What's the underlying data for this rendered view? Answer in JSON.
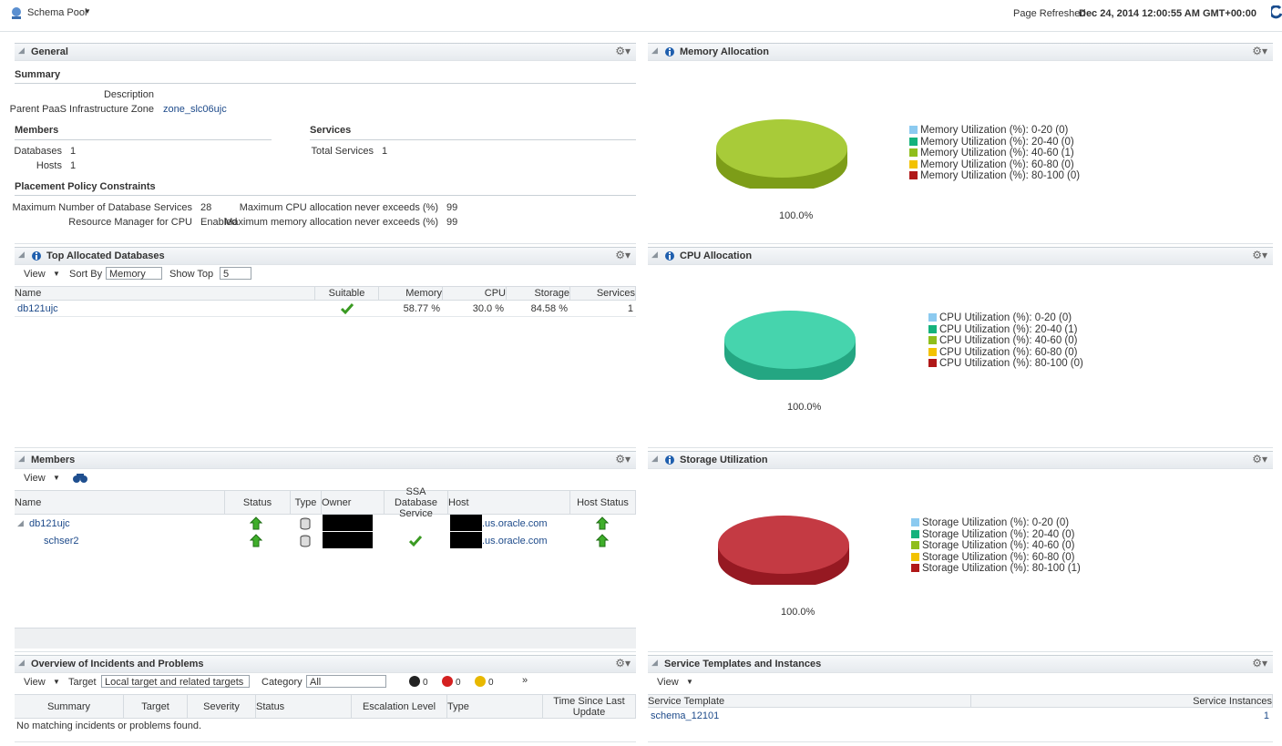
{
  "header": {
    "title": "Schema Pool",
    "refreshed_label": "Page Refreshed",
    "refreshed_value": "Dec 24, 2014 12:00:55 AM GMT+00:00"
  },
  "general": {
    "title": "General",
    "summary": "Summary",
    "description_label": "Description",
    "zone_label": "Parent PaaS Infrastructure Zone",
    "zone_value": "zone_slc06ujc",
    "members_title": "Members",
    "databases_label": "Databases",
    "databases_value": 1,
    "hosts_label": "Hosts",
    "hosts_value": 1,
    "services_title": "Services",
    "total_services_label": "Total Services",
    "total_services_value": 1,
    "placement_title": "Placement Policy Constraints",
    "constraints": [
      {
        "label": "Maximum Number of Database Services",
        "value": 28
      },
      {
        "label": "Maximum CPU allocation never exceeds (%)",
        "value": 99
      },
      {
        "label": "Resource Manager for CPU",
        "value": "Enabled"
      },
      {
        "label": "Maximum memory allocation never exceeds (%)",
        "value": 99
      }
    ]
  },
  "top_databases": {
    "title": "Top Allocated Databases",
    "view": "View",
    "sort_by_label": "Sort By",
    "sort_by_value": "Memory",
    "show_top_label": "Show Top",
    "show_top_value": 5,
    "columns": [
      "Name",
      "Suitable",
      "Memory",
      "CPU",
      "Storage",
      "Services"
    ],
    "rows": [
      {
        "name": "db121ujc",
        "memory": "58.77 %",
        "cpu": "30.0 %",
        "storage": "84.58 %",
        "services": 1
      }
    ]
  },
  "members": {
    "title": "Members",
    "view": "View",
    "columns": [
      "Name",
      "Status",
      "Type",
      "Owner",
      "SSA Database Service",
      "Host",
      "Host Status"
    ],
    "rows": [
      {
        "name": "db121ujc",
        "host": ".us.oracle.com"
      },
      {
        "name": "schser2",
        "host": ".us.oracle.com"
      }
    ]
  },
  "incidents": {
    "title": "Overview of Incidents and Problems",
    "view": "View",
    "target_label": "Target",
    "target_value": "Local target and related targets",
    "category_label": "Category",
    "category_value": "All",
    "counts": [
      0,
      0,
      0
    ],
    "columns": [
      "Summary",
      "Target",
      "Severity",
      "Status",
      "Escalation Level",
      "Type",
      "Time Since Last Update"
    ],
    "empty": "No matching incidents or problems found."
  },
  "charts": [
    {
      "title": "Memory Allocation",
      "pie_label": "100.0%",
      "pie_color": "#9cc41e",
      "legend": [
        {
          "text": "Memory Utilization (%): 0-20 (0)",
          "color": "#8ccaf0"
        },
        {
          "text": "Memory Utilization (%): 20-40 (0)",
          "color": "#14b27c"
        },
        {
          "text": "Memory Utilization (%): 40-60 (1)",
          "color": "#8fbe1c"
        },
        {
          "text": "Memory Utilization (%): 60-80 (0)",
          "color": "#f2c200"
        },
        {
          "text": "Memory Utilization (%): 80-100 (0)",
          "color": "#b01818"
        }
      ]
    },
    {
      "title": "CPU Allocation",
      "pie_label": "100.0%",
      "pie_color": "#2dcfa2",
      "legend": [
        {
          "text": "CPU Utilization (%): 0-20 (0)",
          "color": "#8ccaf0"
        },
        {
          "text": "CPU Utilization (%): 20-40 (1)",
          "color": "#14b27c"
        },
        {
          "text": "CPU Utilization (%): 40-60 (0)",
          "color": "#8fbe1c"
        },
        {
          "text": "CPU Utilization (%): 60-80 (0)",
          "color": "#f2c200"
        },
        {
          "text": "CPU Utilization (%): 80-100 (0)",
          "color": "#b01818"
        }
      ]
    },
    {
      "title": "Storage Utilization",
      "pie_label": "100.0%",
      "pie_color": "#bc1f2a",
      "legend": [
        {
          "text": "Storage Utilization (%): 0-20 (0)",
          "color": "#8ccaf0"
        },
        {
          "text": "Storage Utilization (%): 20-40 (0)",
          "color": "#14b27c"
        },
        {
          "text": "Storage Utilization (%): 40-60 (0)",
          "color": "#8fbe1c"
        },
        {
          "text": "Storage Utilization (%): 60-80 (0)",
          "color": "#f2c200"
        },
        {
          "text": "Storage Utilization (%): 80-100 (1)",
          "color": "#b01818"
        }
      ]
    }
  ],
  "templates": {
    "title": "Service Templates and Instances",
    "view": "View",
    "columns": [
      "Service Template",
      "Service Instances"
    ],
    "rows": [
      {
        "template": "schema_12101",
        "instances": 1
      }
    ]
  }
}
